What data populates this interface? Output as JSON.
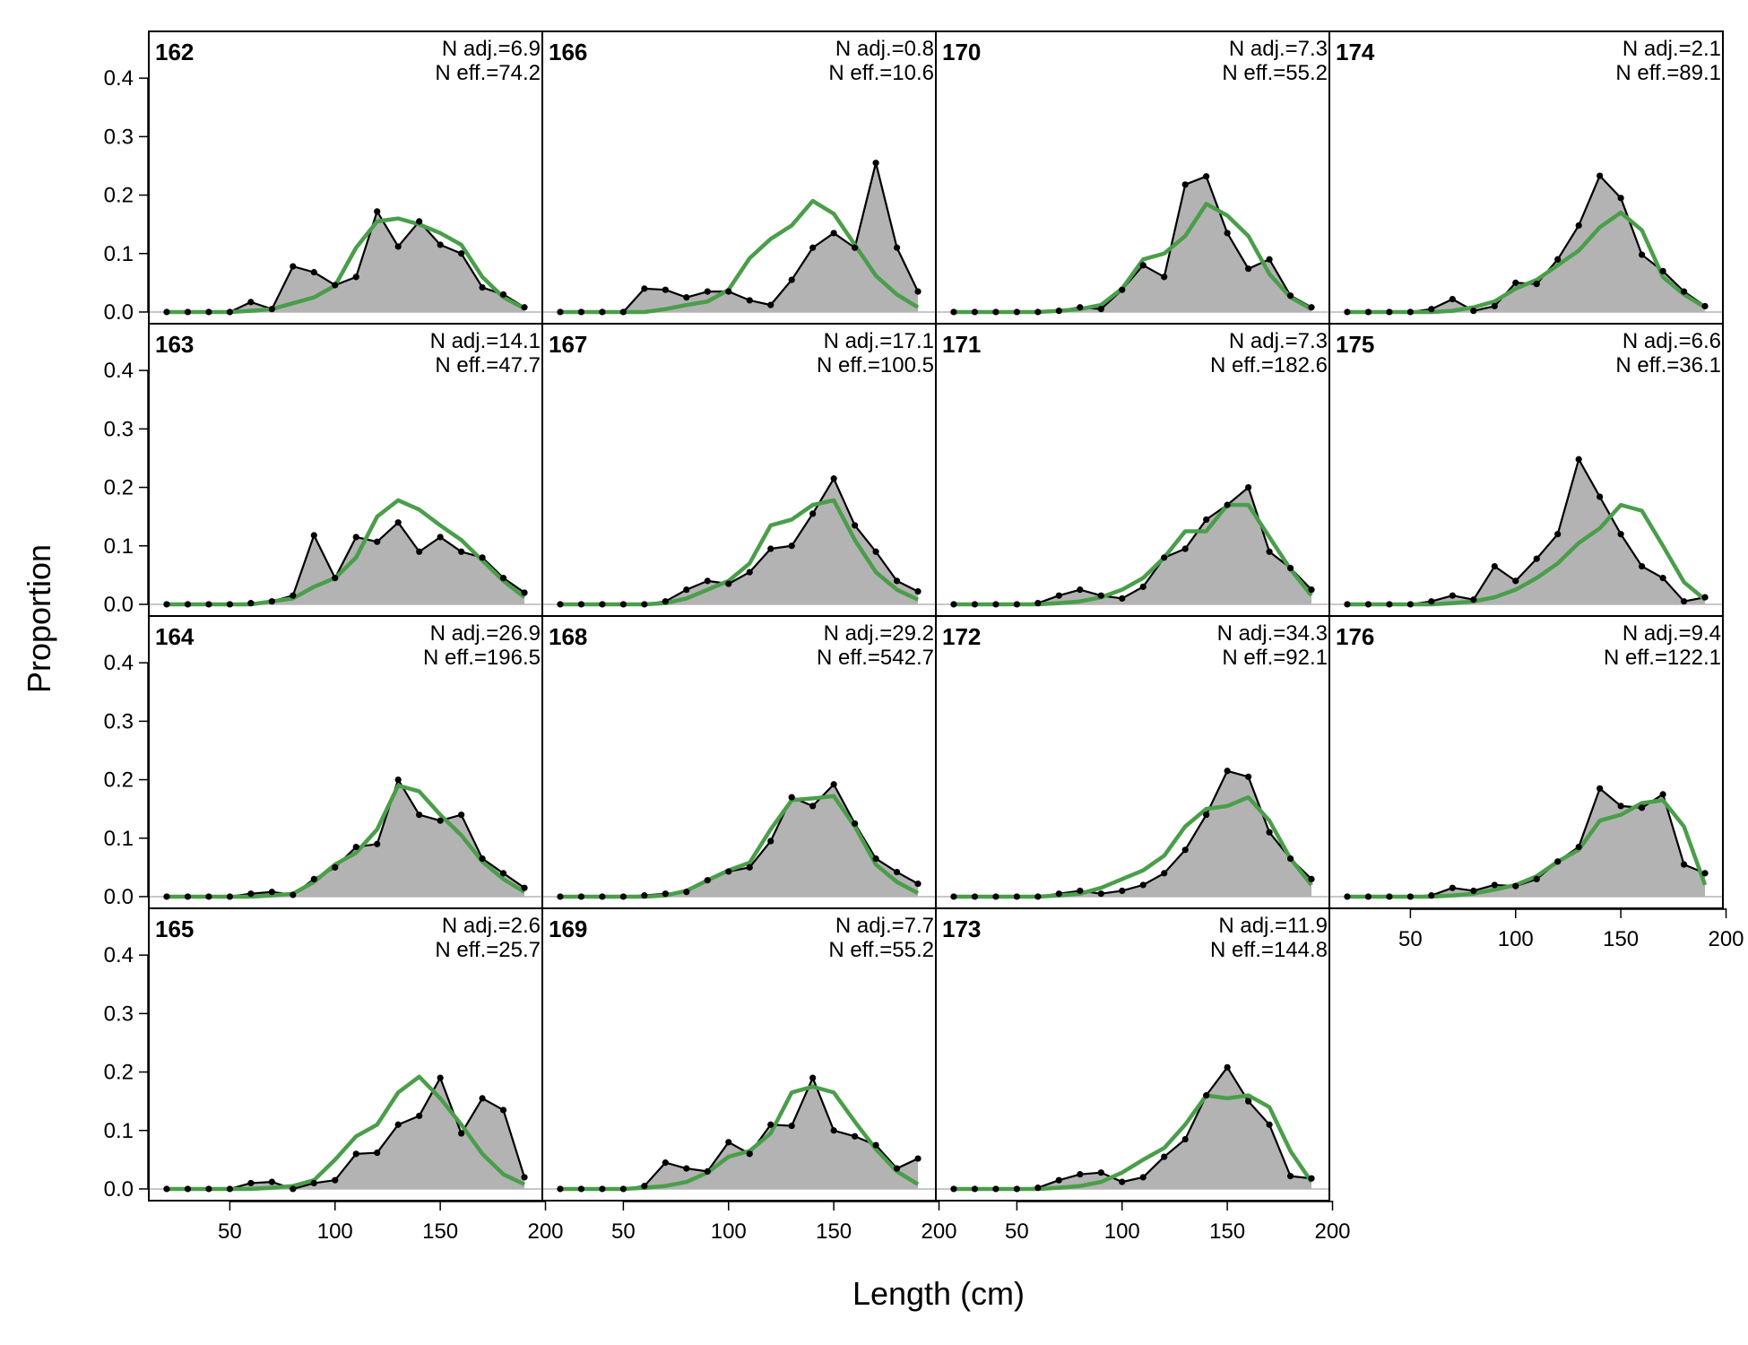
{
  "chart_data": {
    "type": "area",
    "xlabel": "Length (cm)",
    "ylabel": "Proportion",
    "xlim": [
      11.5,
      198.5
    ],
    "ylim": [
      -0.02,
      0.48
    ],
    "x_ticks": [
      50,
      100,
      150,
      200
    ],
    "y_ticks": [
      0.0,
      0.1,
      0.2,
      0.3,
      0.4
    ],
    "bins": [
      20,
      30,
      40,
      50,
      60,
      70,
      80,
      90,
      100,
      110,
      120,
      130,
      140,
      150,
      160,
      170,
      180,
      190
    ],
    "colors": {
      "observed_fill": "#b3b3b3",
      "observed_line": "#000000",
      "expected_line": "#4a9e4a",
      "zero_line": "#c8c8c8"
    },
    "panels": [
      {
        "id": "162",
        "n_adj": "N adj.=6.9",
        "n_eff": "N eff.=74.2",
        "observed": [
          0,
          0,
          0,
          0,
          0.017,
          0.005,
          0.078,
          0.068,
          0.046,
          0.06,
          0.172,
          0.112,
          0.155,
          0.115,
          0.1,
          0.042,
          0.03,
          0.008
        ],
        "expected": [
          0,
          0,
          0,
          0,
          0.002,
          0.005,
          0.015,
          0.025,
          0.045,
          0.11,
          0.155,
          0.16,
          0.15,
          0.135,
          0.115,
          0.06,
          0.025,
          0.006
        ]
      },
      {
        "id": "163",
        "n_adj": "N adj.=14.1",
        "n_eff": "N eff.=47.7",
        "observed": [
          0,
          0,
          0,
          0,
          0.002,
          0.005,
          0.015,
          0.118,
          0.045,
          0.115,
          0.107,
          0.14,
          0.09,
          0.115,
          0.09,
          0.08,
          0.045,
          0.02
        ],
        "expected": [
          0,
          0,
          0,
          0,
          0,
          0.005,
          0.01,
          0.03,
          0.045,
          0.08,
          0.15,
          0.178,
          0.162,
          0.135,
          0.11,
          0.075,
          0.04,
          0.012
        ]
      },
      {
        "id": "164",
        "n_adj": "N adj.=26.9",
        "n_eff": "N eff.=196.5",
        "observed": [
          0,
          0,
          0,
          0,
          0.005,
          0.008,
          0.003,
          0.03,
          0.05,
          0.085,
          0.09,
          0.2,
          0.14,
          0.13,
          0.14,
          0.065,
          0.04,
          0.015
        ],
        "expected": [
          0,
          0,
          0,
          0,
          0,
          0.002,
          0.005,
          0.025,
          0.055,
          0.075,
          0.115,
          0.19,
          0.18,
          0.14,
          0.105,
          0.06,
          0.03,
          0.008
        ]
      },
      {
        "id": "165",
        "n_adj": "N adj.=2.6",
        "n_eff": "N eff.=25.7",
        "observed": [
          0,
          0,
          0,
          0,
          0.01,
          0.012,
          0,
          0.01,
          0.015,
          0.06,
          0.062,
          0.11,
          0.125,
          0.19,
          0.095,
          0.155,
          0.135,
          0.02
        ],
        "expected": [
          0,
          0,
          0,
          0,
          0,
          0.002,
          0.005,
          0.015,
          0.05,
          0.09,
          0.11,
          0.165,
          0.192,
          0.155,
          0.11,
          0.06,
          0.025,
          0.008
        ]
      },
      {
        "id": "166",
        "n_adj": "N adj.=0.8",
        "n_eff": "N eff.=10.6",
        "observed": [
          0,
          0,
          0,
          0,
          0.04,
          0.038,
          0.025,
          0.035,
          0.035,
          0.02,
          0.012,
          0.055,
          0.11,
          0.135,
          0.11,
          0.255,
          0.11,
          0.035
        ],
        "expected": [
          0,
          0,
          0,
          0,
          0,
          0.005,
          0.012,
          0.018,
          0.038,
          0.092,
          0.125,
          0.148,
          0.19,
          0.168,
          0.115,
          0.062,
          0.03,
          0.008
        ]
      },
      {
        "id": "167",
        "n_adj": "N adj.=17.1",
        "n_eff": "N eff.=100.5",
        "observed": [
          0,
          0,
          0,
          0,
          0,
          0.005,
          0.025,
          0.04,
          0.035,
          0.055,
          0.095,
          0.1,
          0.155,
          0.215,
          0.135,
          0.09,
          0.04,
          0.022
        ],
        "expected": [
          0,
          0,
          0,
          0,
          0,
          0.002,
          0.01,
          0.025,
          0.04,
          0.07,
          0.135,
          0.145,
          0.17,
          0.178,
          0.11,
          0.055,
          0.025,
          0.008
        ]
      },
      {
        "id": "168",
        "n_adj": "N adj.=29.2",
        "n_eff": "N eff.=542.7",
        "observed": [
          0,
          0,
          0,
          0,
          0.002,
          0.005,
          0.008,
          0.028,
          0.043,
          0.05,
          0.095,
          0.17,
          0.155,
          0.192,
          0.125,
          0.065,
          0.042,
          0.022
        ],
        "expected": [
          0,
          0,
          0,
          0,
          0,
          0.002,
          0.01,
          0.028,
          0.045,
          0.058,
          0.115,
          0.165,
          0.168,
          0.172,
          0.12,
          0.055,
          0.025,
          0.006
        ]
      },
      {
        "id": "169",
        "n_adj": "N adj.=7.7",
        "n_eff": "N eff.=55.2",
        "observed": [
          0,
          0,
          0,
          0,
          0.005,
          0.045,
          0.035,
          0.03,
          0.08,
          0.06,
          0.11,
          0.108,
          0.19,
          0.1,
          0.09,
          0.075,
          0.035,
          0.052
        ],
        "expected": [
          0,
          0,
          0,
          0,
          0.002,
          0.005,
          0.012,
          0.028,
          0.055,
          0.065,
          0.095,
          0.165,
          0.175,
          0.165,
          0.115,
          0.068,
          0.03,
          0.008
        ]
      },
      {
        "id": "170",
        "n_adj": "N adj.=7.3",
        "n_eff": "N eff.=55.2",
        "observed": [
          0,
          0,
          0,
          0,
          0,
          0.002,
          0.008,
          0.005,
          0.038,
          0.08,
          0.06,
          0.218,
          0.232,
          0.135,
          0.074,
          0.09,
          0.028,
          0.008
        ],
        "expected": [
          0,
          0,
          0,
          0,
          0,
          0.002,
          0.005,
          0.012,
          0.04,
          0.09,
          0.1,
          0.13,
          0.185,
          0.165,
          0.13,
          0.065,
          0.025,
          0.005
        ]
      },
      {
        "id": "171",
        "n_adj": "N adj.=7.3",
        "n_eff": "N eff.=182.6",
        "observed": [
          0,
          0,
          0,
          0,
          0.002,
          0.015,
          0.025,
          0.015,
          0.01,
          0.03,
          0.08,
          0.095,
          0.145,
          0.17,
          0.2,
          0.09,
          0.062,
          0.025
        ],
        "expected": [
          0,
          0,
          0,
          0,
          0,
          0.002,
          0.005,
          0.012,
          0.025,
          0.045,
          0.08,
          0.125,
          0.125,
          0.17,
          0.17,
          0.115,
          0.06,
          0.015
        ]
      },
      {
        "id": "172",
        "n_adj": "N adj.=34.3",
        "n_eff": "N eff.=92.1",
        "observed": [
          0,
          0,
          0,
          0,
          0,
          0.005,
          0.01,
          0.005,
          0.01,
          0.02,
          0.04,
          0.08,
          0.14,
          0.215,
          0.205,
          0.11,
          0.065,
          0.03
        ],
        "expected": [
          0,
          0,
          0,
          0,
          0,
          0.002,
          0.005,
          0.015,
          0.03,
          0.045,
          0.07,
          0.12,
          0.15,
          0.155,
          0.17,
          0.13,
          0.065,
          0.02
        ]
      },
      {
        "id": "173",
        "n_adj": "N adj.=11.9",
        "n_eff": "N eff.=144.8",
        "observed": [
          0,
          0,
          0,
          0,
          0.002,
          0.015,
          0.025,
          0.028,
          0.012,
          0.02,
          0.055,
          0.085,
          0.16,
          0.208,
          0.15,
          0.11,
          0.022,
          0.018
        ],
        "expected": [
          0,
          0,
          0,
          0,
          0,
          0.002,
          0.005,
          0.012,
          0.028,
          0.05,
          0.07,
          0.11,
          0.16,
          0.155,
          0.16,
          0.14,
          0.065,
          0.012
        ]
      },
      {
        "id": "174",
        "n_adj": "N adj.=2.1",
        "n_eff": "N eff.=89.1",
        "observed": [
          0,
          0,
          0,
          0,
          0.005,
          0.022,
          0.002,
          0.01,
          0.05,
          0.048,
          0.09,
          0.148,
          0.233,
          0.195,
          0.098,
          0.07,
          0.035,
          0.01
        ],
        "expected": [
          0,
          0,
          0,
          0,
          0,
          0.002,
          0.008,
          0.018,
          0.04,
          0.055,
          0.08,
          0.105,
          0.145,
          0.17,
          0.14,
          0.06,
          0.03,
          0.008
        ]
      },
      {
        "id": "175",
        "n_adj": "N adj.=6.6",
        "n_eff": "N eff.=36.1",
        "observed": [
          0,
          0,
          0,
          0,
          0.005,
          0.015,
          0.008,
          0.065,
          0.04,
          0.078,
          0.12,
          0.248,
          0.184,
          0.12,
          0.065,
          0.045,
          0.005,
          0.012
        ],
        "expected": [
          0,
          0,
          0,
          0,
          0,
          0.002,
          0.005,
          0.012,
          0.025,
          0.045,
          0.07,
          0.105,
          0.13,
          0.17,
          0.16,
          0.1,
          0.038,
          0.008
        ]
      },
      {
        "id": "176",
        "n_adj": "N adj.=9.4",
        "n_eff": "N eff.=122.1",
        "observed": [
          0,
          0,
          0,
          0,
          0.002,
          0.015,
          0.01,
          0.02,
          0.018,
          0.03,
          0.06,
          0.085,
          0.185,
          0.155,
          0.152,
          0.175,
          0.055,
          0.04
        ],
        "expected": [
          0,
          0,
          0,
          0,
          0,
          0.002,
          0.005,
          0.012,
          0.02,
          0.035,
          0.06,
          0.08,
          0.13,
          0.14,
          0.16,
          0.165,
          0.12,
          0.02
        ]
      }
    ]
  }
}
